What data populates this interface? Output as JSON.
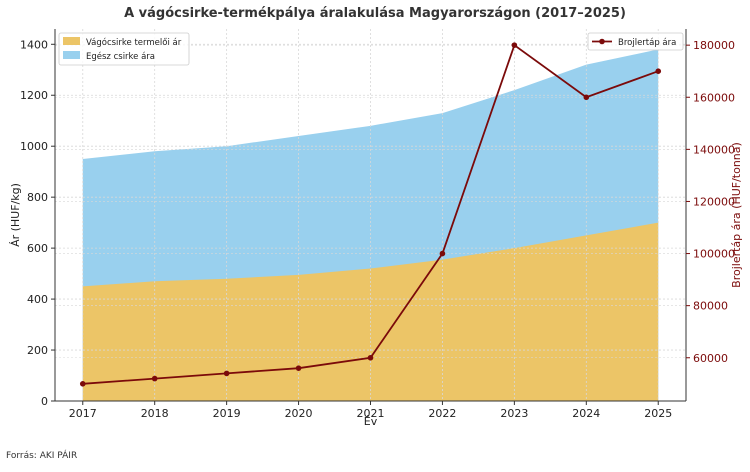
{
  "chart_data": {
    "type": "area",
    "title": "A vágócsirke-termékpálya áralakulása Magyarországon (2017–2025)",
    "xlabel": "Év",
    "ylabel": "Ár (HUF/kg)",
    "y2label": "Brojlertáp ára (HUF/tonna)",
    "categories": [
      "2017",
      "2018",
      "2019",
      "2020",
      "2021",
      "2022",
      "2023",
      "2024",
      "2025"
    ],
    "ylim": [
      0,
      1460
    ],
    "y2lim": [
      43400,
      186200
    ],
    "yticks": [
      0,
      200,
      400,
      600,
      800,
      1000,
      1200,
      1400
    ],
    "y2ticks": [
      60000,
      80000,
      100000,
      120000,
      140000,
      160000,
      180000
    ],
    "y2tick_labels": [
      "60000",
      "80000",
      "100000",
      "120000",
      "140000",
      "160000",
      "180000"
    ],
    "grid": true,
    "series": [
      {
        "name": "Vágócsirke termelői ár",
        "axis": "left",
        "kind": "area",
        "values": [
          450,
          470,
          480,
          495,
          520,
          555,
          600,
          650,
          700
        ]
      },
      {
        "name": "Egész csirke ára",
        "axis": "left",
        "kind": "area",
        "values": [
          950,
          980,
          1000,
          1040,
          1080,
          1130,
          1220,
          1320,
          1380
        ]
      },
      {
        "name": "Brojlertáp ára",
        "axis": "right",
        "kind": "line",
        "values": [
          50000,
          52000,
          54000,
          56000,
          60000,
          100000,
          180000,
          160000,
          170000
        ]
      }
    ],
    "legend_left_position": "top-left",
    "legend_right_position": "top-right",
    "colors": {
      "producer": "#ecc567",
      "whole": "#99d0ee",
      "feed": "#7b0a0a",
      "right_axis": "#7b0a0a",
      "grid": "#d8d8d8"
    }
  },
  "footer": {
    "source": "Forrás: AKI PÁIR"
  }
}
